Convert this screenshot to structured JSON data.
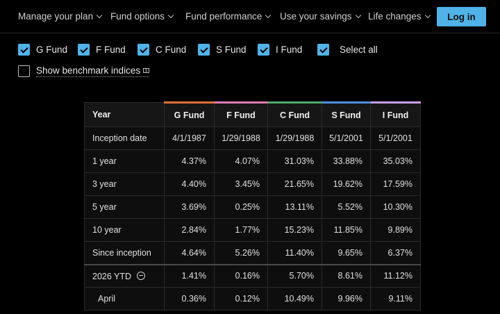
{
  "nav": {
    "items": [
      {
        "label": "Manage your plan"
      },
      {
        "label": "Fund options"
      },
      {
        "label": "Fund performance"
      },
      {
        "label": "Use your savings"
      },
      {
        "label": "Life changes"
      }
    ],
    "login_label": "Log in"
  },
  "filters": {
    "funds": [
      {
        "label": "G Fund",
        "checked": true
      },
      {
        "label": "F Fund",
        "checked": true
      },
      {
        "label": "C Fund",
        "checked": true
      },
      {
        "label": "S Fund",
        "checked": true
      },
      {
        "label": "I Fund",
        "checked": true
      }
    ],
    "select_all": {
      "label": "Select all",
      "checked": true
    },
    "benchmark": {
      "label": "Show benchmark indices",
      "checked": false
    }
  },
  "table": {
    "headers": [
      "Year",
      "G Fund",
      "F Fund",
      "C Fund",
      "S Fund",
      "I Fund"
    ],
    "header_colors": [
      "",
      "#e0703a",
      "#e07ab0",
      "#4fa86a",
      "#4f8fe0",
      "#c8a0e8"
    ],
    "rows": [
      {
        "label": "Inception date",
        "values": [
          "4/1/1987",
          "1/29/1988",
          "1/29/1988",
          "5/1/2001",
          "5/1/2001"
        ]
      },
      {
        "label": "1 year",
        "values": [
          "4.37%",
          "4.07%",
          "31.03%",
          "33.88%",
          "35.03%"
        ]
      },
      {
        "label": "3 year",
        "values": [
          "4.40%",
          "3.45%",
          "21.65%",
          "19.62%",
          "17.59%"
        ]
      },
      {
        "label": "5 year",
        "values": [
          "3.69%",
          "0.25%",
          "13.11%",
          "5.52%",
          "10.30%"
        ]
      },
      {
        "label": "10 year",
        "values": [
          "2.84%",
          "1.77%",
          "15.23%",
          "11.85%",
          "9.89%"
        ]
      },
      {
        "label": "Since inception",
        "values": [
          "4.64%",
          "5.26%",
          "11.40%",
          "9.65%",
          "6.37%"
        ]
      }
    ],
    "ytd": {
      "label": "2026 YTD",
      "values": [
        "1.41%",
        "0.16%",
        "5.70%",
        "8.61%",
        "11.12%"
      ]
    },
    "month": {
      "label": "April",
      "values": [
        "0.36%",
        "0.12%",
        "10.49%",
        "9.96%",
        "9.11%"
      ]
    }
  }
}
